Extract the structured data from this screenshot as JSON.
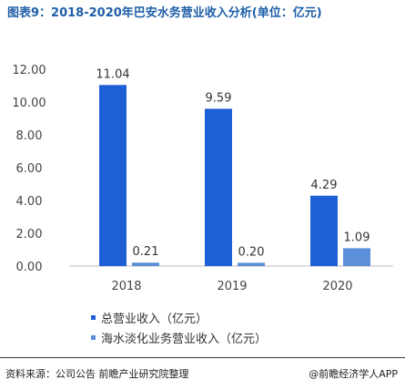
{
  "header": {
    "title": "图表9：2018-2020年巴安水务营业收入分析(单位：亿元)"
  },
  "chart_data": {
    "type": "bar",
    "categories": [
      "2018",
      "2019",
      "2020"
    ],
    "series": [
      {
        "name": "总营业收入（亿元）",
        "values": [
          11.04,
          9.59,
          4.29
        ],
        "color": "#1f5fd6"
      },
      {
        "name": "海水淡化业务营业收入（亿元）",
        "values": [
          0.21,
          0.2,
          1.09
        ],
        "color": "#5b8fd9"
      }
    ],
    "value_labels": [
      [
        "11.04",
        "9.59",
        "4.29"
      ],
      [
        "0.21",
        "0.20",
        "1.09"
      ]
    ],
    "y_ticks": [
      "0.00",
      "2.00",
      "4.00",
      "6.00",
      "8.00",
      "10.00",
      "12.00"
    ],
    "ylim": [
      0,
      12
    ],
    "grid": false,
    "legend_position": "bottom"
  },
  "footer": {
    "source": "资料来源：公司公告 前瞻产业研究院整理",
    "credit": "@前瞻经济学人APP"
  }
}
